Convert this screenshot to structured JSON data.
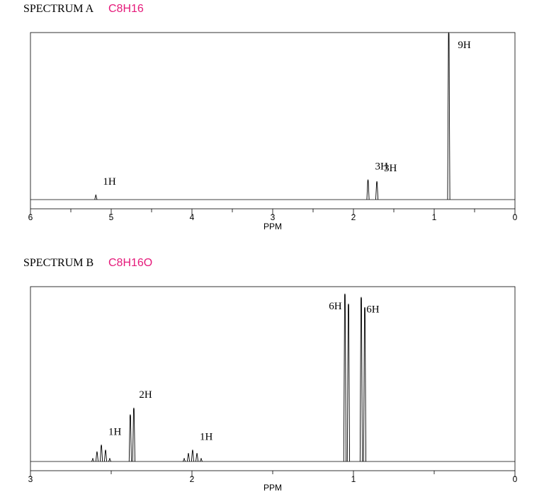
{
  "chart_data": [
    {
      "type": "nmr",
      "title": "SPECTRUM A",
      "subtitle": "C8H16",
      "xlabel": "PPM",
      "xlim": [
        6,
        0
      ],
      "xticks": [
        6,
        5,
        4,
        3,
        2,
        1,
        0
      ],
      "minor_xticks": [
        5.5,
        4.5,
        3.5,
        2.5,
        1.5,
        0.5
      ],
      "ylim": [
        0,
        100
      ],
      "color": "#000000",
      "signals": [
        {
          "label": "1H",
          "x": [
            5.19
          ],
          "values": [
            3
          ]
        },
        {
          "label": "3H",
          "x": [
            1.82
          ],
          "values": [
            12
          ]
        },
        {
          "label": "3H",
          "x": [
            1.71
          ],
          "values": [
            11
          ]
        },
        {
          "label": "9H",
          "x": [
            0.82
          ],
          "values": [
            100
          ]
        }
      ]
    },
    {
      "type": "nmr",
      "title": "SPECTRUM B",
      "subtitle": "C8H16O",
      "xlabel": "PPM",
      "xlim": [
        3,
        0
      ],
      "xticks": [
        3,
        2,
        1,
        0
      ],
      "minor_xticks": [
        2.5,
        1.5,
        0.5
      ],
      "ylim": [
        0,
        100
      ],
      "color": "#000000",
      "signals": [
        {
          "label": "1H",
          "x": [
            2.614,
            2.588,
            2.561,
            2.535,
            2.509
          ],
          "values": [
            2,
            6,
            10,
            7,
            2
          ]
        },
        {
          "label": "2H",
          "x": [
            2.382,
            2.36
          ],
          "values": [
            28,
            32
          ]
        },
        {
          "label": "1H",
          "x": [
            2.048,
            2.022,
            1.996,
            1.969,
            1.943
          ],
          "values": [
            2,
            5,
            7,
            5,
            2
          ]
        },
        {
          "label": "6H",
          "x": [
            1.053,
            1.031
          ],
          "values": [
            100,
            94
          ]
        },
        {
          "label": "6H",
          "x": [
            0.952,
            0.93
          ],
          "values": [
            98,
            92
          ]
        }
      ]
    }
  ]
}
